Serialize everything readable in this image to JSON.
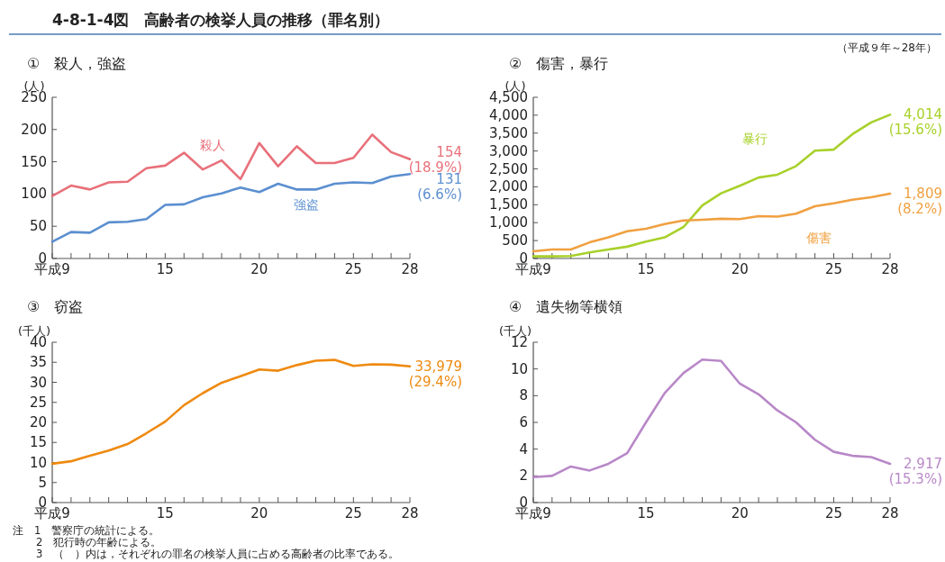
{
  "chart_data": [
    {
      "type": "line",
      "title": "①　殺人，強盗",
      "ylabel": "(人)",
      "annotations": [
        "4-8-1-4図　高齢者の検挙人員の推移（罪名別）",
        "（平成９年～28年）",
        "注　1　警察庁の統計による。",
        "2　犯行時の年齢による。",
        "3　（　）内は，それぞれの罪名の検挙人員に占める高齢者の比率である。"
      ],
      "x": [
        9,
        10,
        11,
        12,
        13,
        14,
        15,
        16,
        17,
        18,
        19,
        20,
        21,
        22,
        23,
        24,
        25,
        26,
        27,
        28
      ],
      "xlim": [
        9,
        28
      ],
      "xticks": [
        {
          "value": 9,
          "label": "平成9"
        },
        {
          "value": 10,
          "label": null
        },
        {
          "value": 11,
          "label": null
        },
        {
          "value": 12,
          "label": null
        },
        {
          "value": 13,
          "label": null
        },
        {
          "value": 14,
          "label": null
        },
        15,
        {
          "value": 16,
          "label": null
        },
        {
          "value": 17,
          "label": null
        },
        {
          "value": 18,
          "label": null
        },
        {
          "value": 19,
          "label": null
        },
        20,
        {
          "value": 21,
          "label": null
        },
        {
          "value": 22,
          "label": null
        },
        {
          "value": 23,
          "label": null
        },
        {
          "value": 24,
          "label": null
        },
        25,
        {
          "value": 26,
          "label": null
        },
        {
          "value": 27,
          "label": null
        },
        28
      ],
      "ylim": [
        0,
        250
      ],
      "yticks": [
        0,
        50,
        100,
        150,
        200,
        250
      ],
      "series": [
        {
          "name": "殺人",
          "color": "#e8707a",
          "values": [
            97,
            113,
            107,
            118,
            119,
            140,
            144,
            164,
            138,
            152,
            123,
            179,
            143,
            174,
            148,
            148,
            156,
            192,
            165,
            154
          ],
          "value_labels": [
            null,
            null,
            null,
            null,
            null,
            null,
            null,
            null,
            null,
            null,
            null,
            null,
            null,
            null,
            null,
            null,
            null,
            null,
            null,
            "154 (18.9%)"
          ]
        },
        {
          "name": "強盗",
          "color": "#5b8fd0",
          "values": [
            26,
            41,
            40,
            56,
            57,
            61,
            83,
            84,
            95,
            101,
            110,
            103,
            116,
            107,
            107,
            116,
            118,
            117,
            127,
            131
          ],
          "value_labels": [
            null,
            null,
            null,
            null,
            null,
            null,
            null,
            null,
            null,
            null,
            null,
            null,
            null,
            null,
            null,
            null,
            null,
            null,
            null,
            "131 (6.6%)"
          ]
        }
      ]
    },
    {
      "type": "line",
      "title": "②　傷害，暴行",
      "ylabel": "(人)",
      "x": [
        9,
        10,
        11,
        12,
        13,
        14,
        15,
        16,
        17,
        18,
        19,
        20,
        21,
        22,
        23,
        24,
        25,
        26,
        27,
        28
      ],
      "xlim": [
        9,
        28
      ],
      "xticks": [
        {
          "value": 9,
          "label": "平成9"
        },
        {
          "value": 10,
          "label": null
        },
        {
          "value": 11,
          "label": null
        },
        {
          "value": 12,
          "label": null
        },
        {
          "value": 13,
          "label": null
        },
        {
          "value": 14,
          "label": null
        },
        15,
        {
          "value": 16,
          "label": null
        },
        {
          "value": 17,
          "label": null
        },
        {
          "value": 18,
          "label": null
        },
        {
          "value": 19,
          "label": null
        },
        20,
        {
          "value": 21,
          "label": null
        },
        {
          "value": 22,
          "label": null
        },
        {
          "value": 23,
          "label": null
        },
        {
          "value": 24,
          "label": null
        },
        25,
        {
          "value": 26,
          "label": null
        },
        {
          "value": 27,
          "label": null
        },
        28
      ],
      "ylim": [
        0,
        4500
      ],
      "yticks": [
        0,
        500,
        {
          "value": 1000,
          "label": "1,000"
        },
        {
          "value": 1500,
          "label": "1,500"
        },
        {
          "value": 2000,
          "label": "2,000"
        },
        {
          "value": 2500,
          "label": "2,500"
        },
        {
          "value": 3000,
          "label": "3,000"
        },
        {
          "value": 3500,
          "label": "3,500"
        },
        {
          "value": 4000,
          "label": "4,000"
        },
        {
          "value": 4500,
          "label": "4,500"
        }
      ],
      "series": [
        {
          "name": "暴行",
          "color": "#a8d12a",
          "values": [
            60,
            60,
            70,
            170,
            250,
            330,
            470,
            590,
            880,
            1480,
            1820,
            2030,
            2260,
            2340,
            2580,
            3010,
            3040,
            3470,
            3800,
            4014
          ],
          "value_labels": [
            null,
            null,
            null,
            null,
            null,
            null,
            null,
            null,
            null,
            null,
            null,
            null,
            null,
            null,
            null,
            null,
            null,
            null,
            null,
            "4,014 (15.6%)"
          ]
        },
        {
          "name": "傷害",
          "color": "#f0a040",
          "values": [
            200,
            250,
            250,
            450,
            590,
            760,
            830,
            960,
            1060,
            1080,
            1110,
            1100,
            1180,
            1170,
            1250,
            1460,
            1540,
            1640,
            1710,
            1809
          ],
          "value_labels": [
            null,
            null,
            null,
            null,
            null,
            null,
            null,
            null,
            null,
            null,
            null,
            null,
            null,
            null,
            null,
            null,
            null,
            null,
            null,
            "1,809 (8.2%)"
          ]
        }
      ]
    },
    {
      "type": "line",
      "title": "③　窃盗",
      "ylabel": "(千人)",
      "x": [
        9,
        10,
        11,
        12,
        13,
        14,
        15,
        16,
        17,
        18,
        19,
        20,
        21,
        22,
        23,
        24,
        25,
        26,
        27,
        28
      ],
      "xlim": [
        9,
        28
      ],
      "xticks": [
        {
          "value": 9,
          "label": "平成9"
        },
        {
          "value": 10,
          "label": null
        },
        {
          "value": 11,
          "label": null
        },
        {
          "value": 12,
          "label": null
        },
        {
          "value": 13,
          "label": null
        },
        {
          "value": 14,
          "label": null
        },
        15,
        {
          "value": 16,
          "label": null
        },
        {
          "value": 17,
          "label": null
        },
        {
          "value": 18,
          "label": null
        },
        {
          "value": 19,
          "label": null
        },
        20,
        {
          "value": 21,
          "label": null
        },
        {
          "value": 22,
          "label": null
        },
        {
          "value": 23,
          "label": null
        },
        {
          "value": 24,
          "label": null
        },
        25,
        {
          "value": 26,
          "label": null
        },
        {
          "value": 27,
          "label": null
        },
        28
      ],
      "ylim": [
        0,
        40
      ],
      "yticks": [
        0,
        5,
        10,
        15,
        20,
        25,
        30,
        35,
        40
      ],
      "series": [
        {
          "color": "#ee8a10",
          "values": [
            9.7,
            10.3,
            11.7,
            13.0,
            14.6,
            17.3,
            20.2,
            24.3,
            27.3,
            29.9,
            31.5,
            33.2,
            32.9,
            34.3,
            35.4,
            35.6,
            34.1,
            34.5,
            34.4,
            34.0
          ]
        }
      ],
      "annotations": [
        {
          "text": "33,979 (29.4%)",
          "x": 28,
          "y": 34.0
        }
      ]
    },
    {
      "type": "line",
      "title": "④　遺失物等横領",
      "ylabel": "(千人)",
      "x": [
        9,
        10,
        11,
        12,
        13,
        14,
        15,
        16,
        17,
        18,
        19,
        20,
        21,
        22,
        23,
        24,
        25,
        26,
        27,
        28
      ],
      "xlim": [
        9,
        28
      ],
      "xticks": [
        {
          "value": 9,
          "label": "平成9"
        },
        {
          "value": 10,
          "label": null
        },
        {
          "value": 11,
          "label": null
        },
        {
          "value": 12,
          "label": null
        },
        {
          "value": 13,
          "label": null
        },
        {
          "value": 14,
          "label": null
        },
        15,
        {
          "value": 16,
          "label": null
        },
        {
          "value": 17,
          "label": null
        },
        {
          "value": 18,
          "label": null
        },
        {
          "value": 19,
          "label": null
        },
        20,
        {
          "value": 21,
          "label": null
        },
        {
          "value": 22,
          "label": null
        },
        {
          "value": 23,
          "label": null
        },
        {
          "value": 24,
          "label": null
        },
        25,
        {
          "value": 26,
          "label": null
        },
        {
          "value": 27,
          "label": null
        },
        28
      ],
      "ylim": [
        0,
        12
      ],
      "yticks": [
        0,
        2,
        4,
        6,
        8,
        10,
        12
      ],
      "series": [
        {
          "color": "#b888c8",
          "values": [
            1.9,
            2.0,
            2.7,
            2.4,
            2.9,
            3.7,
            6.0,
            8.2,
            9.7,
            10.7,
            10.6,
            8.9,
            8.1,
            6.9,
            6.0,
            4.7,
            3.8,
            3.5,
            3.4,
            2.9
          ]
        }
      ],
      "annotations": [
        {
          "text": "2,917 (15.3%)",
          "x": 28,
          "y": 2.9
        }
      ]
    }
  ]
}
